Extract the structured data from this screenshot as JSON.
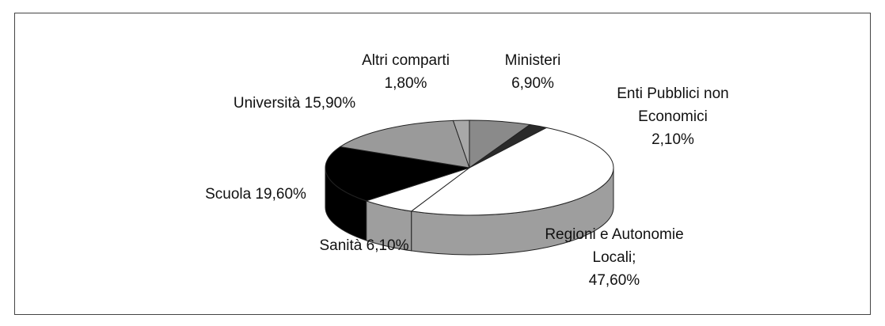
{
  "chart_data": {
    "type": "pie3d",
    "categories": [
      "Ministeri",
      "Enti Pubblici non Economici",
      "Regioni e Autonomie Locali;",
      "Sanità",
      "Scuola",
      "Università",
      "Altri comparti"
    ],
    "values": [
      6.9,
      2.1,
      47.6,
      6.1,
      19.6,
      15.9,
      1.8
    ],
    "value_labels": [
      "6,90%",
      "2,10%",
      "47,60%",
      "6,10%",
      "19,60%",
      "15,90%",
      "1,80%"
    ],
    "colors": [
      "#8a8a8a",
      "#2a2a2a",
      "#ffffff",
      "#ffffff",
      "#000000",
      "#9a9a9a",
      "#a8a8a8"
    ]
  }
}
